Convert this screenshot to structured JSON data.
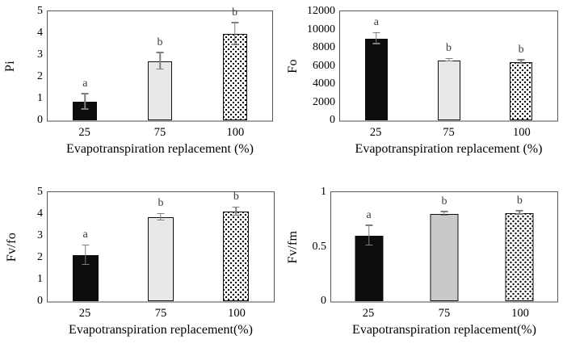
{
  "figure": {
    "background": "#ffffff",
    "description_colors": {
      "bar_black": "#0d0d0d",
      "bar_light_gray": "#e8e8e8",
      "bar_mid_gray": "#c9c9c9",
      "bar_dot_fill": "#ffffff",
      "bar_dot_ink": "#111111",
      "error_bar": "#7f7f7f",
      "plot_frame": "#595959",
      "baseline_axis": "#a6a6a6",
      "letter_text": "#3a3a3a"
    }
  },
  "chart_data": [
    {
      "type": "bar",
      "ylabel": "Pi",
      "xlabel": "Evapotranspiration replacement (%)",
      "categories": [
        "25",
        "75",
        "100"
      ],
      "values": [
        0.85,
        2.7,
        3.95
      ],
      "errors": [
        0.35,
        0.38,
        0.5
      ],
      "letters": [
        "a",
        "b",
        "b"
      ],
      "bar_styles": [
        "solid-black",
        "light-gray",
        "dots"
      ],
      "ylim": [
        0,
        5
      ],
      "yticks": [
        0,
        1,
        2,
        3,
        4,
        5
      ],
      "ytick_labels": [
        "0",
        "1",
        "2",
        "3",
        "4",
        "5"
      ],
      "grid": false,
      "legend": "none"
    },
    {
      "type": "bar",
      "ylabel": "Fo",
      "xlabel": "Evapotranspiration replacement (%)",
      "categories": [
        "25",
        "75",
        "100"
      ],
      "values": [
        9000,
        6600,
        6400
      ],
      "errors": [
        600,
        120,
        180
      ],
      "letters": [
        "a",
        "b",
        "b"
      ],
      "bar_styles": [
        "solid-black",
        "light-gray",
        "dots"
      ],
      "ylim": [
        0,
        12000
      ],
      "yticks": [
        0,
        2000,
        4000,
        6000,
        8000,
        10000,
        12000
      ],
      "ytick_labels": [
        "0",
        "2000",
        "4000",
        "6000",
        "8000",
        "10000",
        "12000"
      ],
      "grid": false,
      "legend": "none"
    },
    {
      "type": "bar",
      "ylabel": "Fv/fo",
      "xlabel": "Evapotranspiration replacement(%)",
      "categories": [
        "25",
        "75",
        "100"
      ],
      "values": [
        2.1,
        3.85,
        4.1
      ],
      "errors": [
        0.45,
        0.15,
        0.18
      ],
      "letters": [
        "a",
        "b",
        "b"
      ],
      "bar_styles": [
        "solid-black",
        "light-gray",
        "dots"
      ],
      "ylim": [
        0,
        5
      ],
      "yticks": [
        0,
        1,
        2,
        3,
        4,
        5
      ],
      "ytick_labels": [
        "0",
        "1",
        "2",
        "3",
        "4",
        "5"
      ],
      "grid": false,
      "legend": "none"
    },
    {
      "type": "bar",
      "ylabel": "Fv/fm",
      "xlabel": "Evapotranspiration replacement(%)",
      "categories": [
        "25",
        "75",
        "100"
      ],
      "values": [
        0.6,
        0.8,
        0.81
      ],
      "errors": [
        0.09,
        0.015,
        0.015
      ],
      "letters": [
        "a",
        "b",
        "b"
      ],
      "bar_styles": [
        "solid-black",
        "mid-gray",
        "dots"
      ],
      "ylim": [
        0,
        1
      ],
      "yticks": [
        0,
        0.5,
        1
      ],
      "ytick_labels": [
        "0",
        "0.5",
        "1"
      ],
      "grid": false,
      "legend": "none"
    }
  ]
}
